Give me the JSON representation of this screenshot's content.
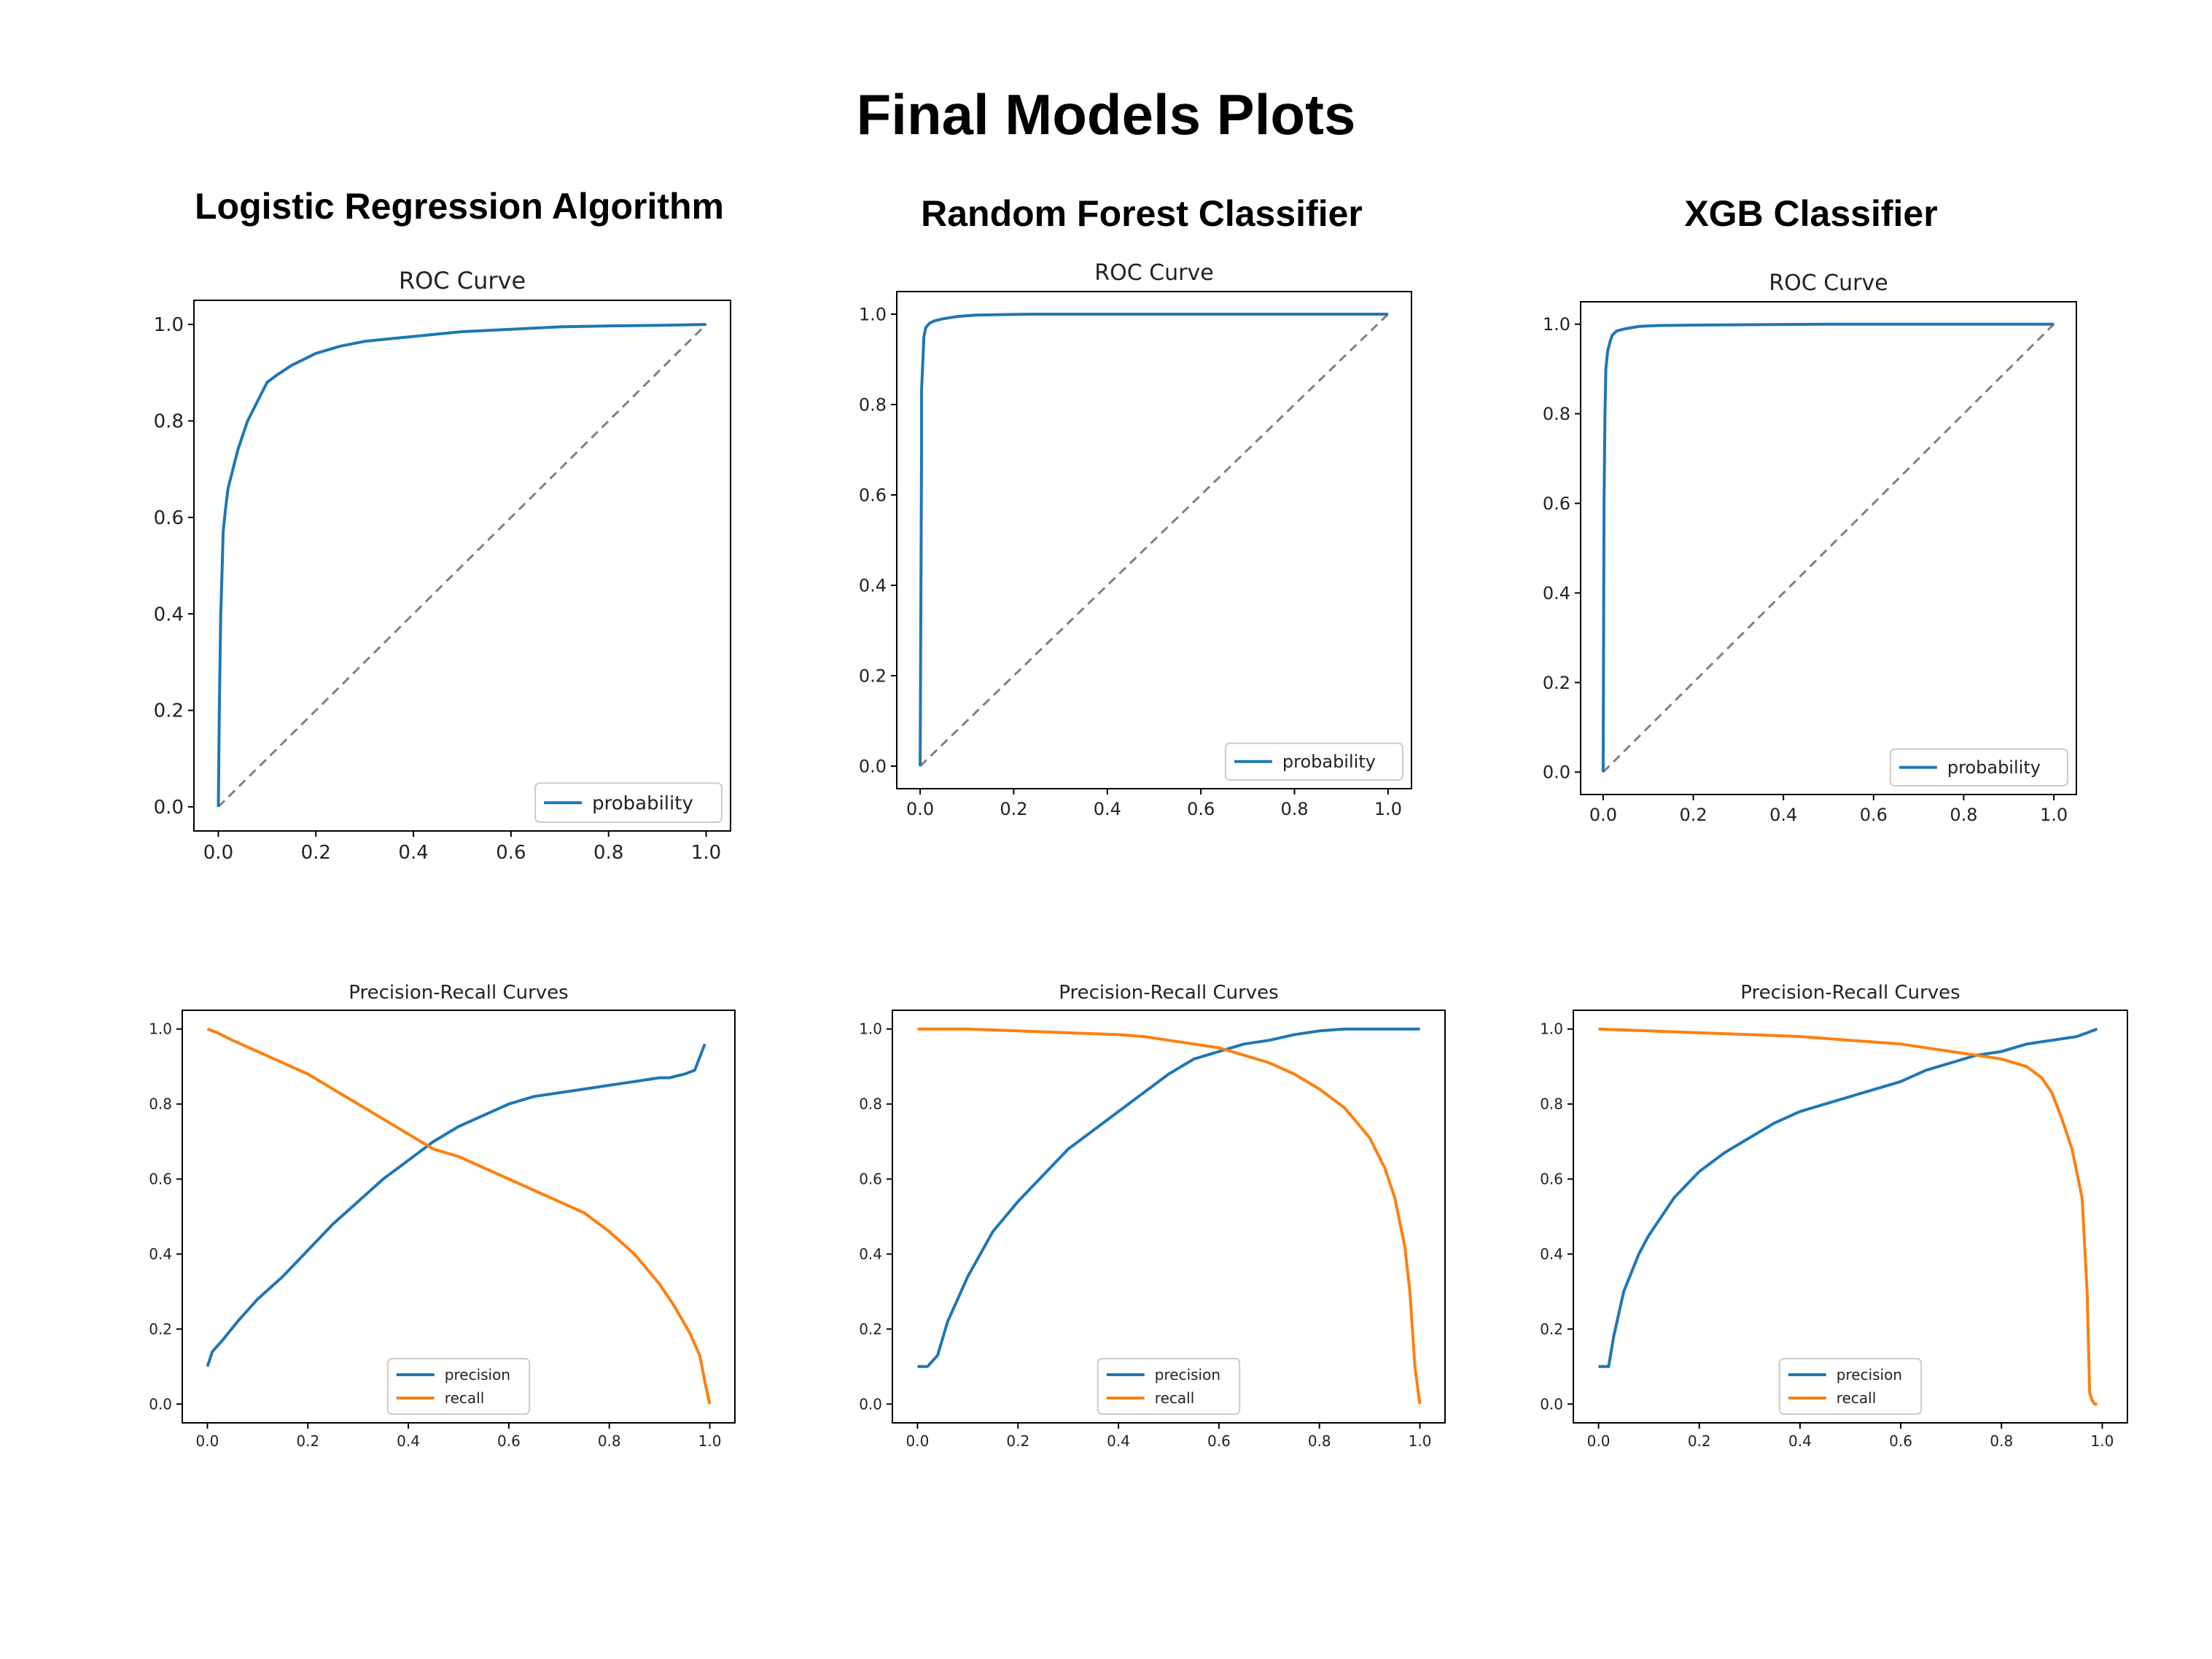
{
  "page": {
    "title": "Final Models Plots"
  },
  "models": [
    {
      "title": "Logistic Regression Algorithm"
    },
    {
      "title": "Random Forest Classifier"
    },
    {
      "title": "XGB Classifier"
    }
  ],
  "colors": {
    "blue": "#1f77b4",
    "orange": "#ff7f0e",
    "diagonal": "#808080",
    "axis": "#000000"
  },
  "chart_data": [
    {
      "id": "lr-roc",
      "type": "line",
      "title": "ROC Curve",
      "xlabel": "",
      "ylabel": "",
      "xlim": [
        -0.05,
        1.05
      ],
      "ylim": [
        -0.05,
        1.05
      ],
      "xticks": [
        "0.0",
        "0.2",
        "0.4",
        "0.6",
        "0.8",
        "1.0"
      ],
      "yticks": [
        "0.0",
        "0.2",
        "0.4",
        "0.6",
        "0.8",
        "1.0"
      ],
      "legend_position": "lower-right",
      "diagonal": true,
      "series": [
        {
          "name": "probability",
          "color": "#1f77b4",
          "x": [
            0,
            0.002,
            0.005,
            0.008,
            0.01,
            0.015,
            0.02,
            0.03,
            0.04,
            0.05,
            0.06,
            0.08,
            0.1,
            0.12,
            0.15,
            0.2,
            0.25,
            0.3,
            0.35,
            0.4,
            0.45,
            0.5,
            0.6,
            0.7,
            0.8,
            0.9,
            1.0
          ],
          "y": [
            0,
            0.2,
            0.4,
            0.5,
            0.57,
            0.62,
            0.66,
            0.7,
            0.74,
            0.77,
            0.8,
            0.84,
            0.88,
            0.895,
            0.915,
            0.94,
            0.955,
            0.965,
            0.97,
            0.975,
            0.98,
            0.985,
            0.99,
            0.995,
            0.997,
            0.998,
            1.0
          ]
        }
      ]
    },
    {
      "id": "rf-roc",
      "type": "line",
      "title": "ROC Curve",
      "xlabel": "",
      "ylabel": "",
      "xlim": [
        -0.05,
        1.05
      ],
      "ylim": [
        -0.05,
        1.05
      ],
      "xticks": [
        "0.0",
        "0.2",
        "0.4",
        "0.6",
        "0.8",
        "1.0"
      ],
      "yticks": [
        "0.0",
        "0.2",
        "0.4",
        "0.6",
        "0.8",
        "1.0"
      ],
      "legend_position": "lower-right",
      "diagonal": true,
      "series": [
        {
          "name": "probability",
          "color": "#1f77b4",
          "x": [
            0,
            0.003,
            0.003,
            0.006,
            0.008,
            0.012,
            0.02,
            0.03,
            0.05,
            0.08,
            0.12,
            0.24,
            0.5,
            1.0
          ],
          "y": [
            0,
            0.7,
            0.83,
            0.9,
            0.95,
            0.97,
            0.98,
            0.985,
            0.99,
            0.995,
            0.998,
            1.0,
            1.0,
            1.0
          ]
        }
      ]
    },
    {
      "id": "xgb-roc",
      "type": "line",
      "title": "ROC Curve",
      "xlabel": "",
      "ylabel": "",
      "xlim": [
        -0.05,
        1.05
      ],
      "ylim": [
        -0.05,
        1.05
      ],
      "xticks": [
        "0.0",
        "0.2",
        "0.4",
        "0.6",
        "0.8",
        "1.0"
      ],
      "yticks": [
        "0.0",
        "0.2",
        "0.4",
        "0.6",
        "0.8",
        "1.0"
      ],
      "legend_position": "lower-right",
      "diagonal": true,
      "series": [
        {
          "name": "probability",
          "color": "#1f77b4",
          "x": [
            0,
            0.002,
            0.004,
            0.006,
            0.01,
            0.015,
            0.02,
            0.03,
            0.05,
            0.08,
            0.12,
            0.2,
            0.5,
            1.0
          ],
          "y": [
            0,
            0.6,
            0.8,
            0.9,
            0.94,
            0.96,
            0.975,
            0.985,
            0.99,
            0.995,
            0.997,
            0.998,
            1.0,
            1.0
          ]
        }
      ]
    },
    {
      "id": "lr-pr",
      "type": "line",
      "title": "Precision-Recall Curves",
      "xlabel": "",
      "ylabel": "",
      "xlim": [
        -0.05,
        1.05
      ],
      "ylim": [
        -0.05,
        1.05
      ],
      "xticks": [
        "0.0",
        "0.2",
        "0.4",
        "0.6",
        "0.8",
        "1.0"
      ],
      "yticks": [
        "0.0",
        "0.2",
        "0.4",
        "0.6",
        "0.8",
        "1.0"
      ],
      "legend_position": "lower-center",
      "diagonal": false,
      "series": [
        {
          "name": "precision",
          "color": "#1f77b4",
          "x": [
            0,
            0.01,
            0.03,
            0.06,
            0.1,
            0.15,
            0.2,
            0.25,
            0.3,
            0.35,
            0.4,
            0.45,
            0.5,
            0.55,
            0.6,
            0.65,
            0.7,
            0.75,
            0.8,
            0.85,
            0.9,
            0.92,
            0.95,
            0.97,
            0.99
          ],
          "y": [
            0.1,
            0.14,
            0.17,
            0.22,
            0.28,
            0.34,
            0.41,
            0.48,
            0.54,
            0.6,
            0.65,
            0.7,
            0.74,
            0.77,
            0.8,
            0.82,
            0.83,
            0.84,
            0.85,
            0.86,
            0.87,
            0.87,
            0.88,
            0.89,
            0.96
          ]
        }
      ],
      "series_2": [
        {
          "name": "recall",
          "color": "#ff7f0e",
          "x": [
            0,
            0.02,
            0.05,
            0.1,
            0.15,
            0.2,
            0.25,
            0.3,
            0.35,
            0.4,
            0.45,
            0.5,
            0.55,
            0.6,
            0.65,
            0.7,
            0.75,
            0.8,
            0.85,
            0.9,
            0.93,
            0.96,
            0.98,
            0.99,
            1.0
          ],
          "y": [
            1.0,
            0.99,
            0.97,
            0.94,
            0.91,
            0.88,
            0.84,
            0.8,
            0.76,
            0.72,
            0.68,
            0.66,
            0.63,
            0.6,
            0.57,
            0.54,
            0.51,
            0.46,
            0.4,
            0.32,
            0.26,
            0.19,
            0.13,
            0.06,
            0.0
          ]
        }
      ]
    },
    {
      "id": "rf-pr",
      "type": "line",
      "title": "Precision-Recall Curves",
      "xlabel": "",
      "ylabel": "",
      "xlim": [
        -0.05,
        1.05
      ],
      "ylim": [
        -0.05,
        1.05
      ],
      "xticks": [
        "0.0",
        "0.2",
        "0.4",
        "0.6",
        "0.8",
        "1.0"
      ],
      "yticks": [
        "0.0",
        "0.2",
        "0.4",
        "0.6",
        "0.8",
        "1.0"
      ],
      "legend_position": "lower-center",
      "diagonal": false,
      "series": [
        {
          "name": "precision",
          "color": "#1f77b4",
          "x": [
            0,
            0.02,
            0.04,
            0.06,
            0.1,
            0.15,
            0.2,
            0.25,
            0.3,
            0.35,
            0.4,
            0.45,
            0.5,
            0.55,
            0.6,
            0.65,
            0.7,
            0.75,
            0.8,
            0.85,
            0.9,
            0.95,
            1.0
          ],
          "y": [
            0.1,
            0.1,
            0.13,
            0.22,
            0.34,
            0.46,
            0.54,
            0.61,
            0.68,
            0.73,
            0.78,
            0.83,
            0.88,
            0.92,
            0.94,
            0.96,
            0.97,
            0.985,
            0.995,
            1.0,
            1.0,
            1.0,
            1.0
          ]
        },
        {
          "name": "recall",
          "color": "#ff7f0e",
          "x": [
            0,
            0.1,
            0.2,
            0.3,
            0.4,
            0.45,
            0.5,
            0.55,
            0.6,
            0.65,
            0.7,
            0.75,
            0.8,
            0.85,
            0.9,
            0.93,
            0.95,
            0.97,
            0.98,
            0.99,
            1.0
          ],
          "y": [
            1.0,
            1.0,
            0.995,
            0.99,
            0.985,
            0.98,
            0.97,
            0.96,
            0.95,
            0.93,
            0.91,
            0.88,
            0.84,
            0.79,
            0.71,
            0.63,
            0.55,
            0.42,
            0.3,
            0.1,
            0.0
          ]
        }
      ]
    },
    {
      "id": "xgb-pr",
      "type": "line",
      "title": "Precision-Recall Curves",
      "xlabel": "",
      "ylabel": "",
      "xlim": [
        -0.05,
        1.05
      ],
      "ylim": [
        -0.05,
        1.05
      ],
      "xticks": [
        "0.0",
        "0.2",
        "0.4",
        "0.6",
        "0.8",
        "1.0"
      ],
      "yticks": [
        "0.0",
        "0.2",
        "0.4",
        "0.6",
        "0.8",
        "1.0"
      ],
      "legend_position": "lower-center",
      "diagonal": false,
      "series": [
        {
          "name": "precision",
          "color": "#1f77b4",
          "x": [
            0,
            0.02,
            0.03,
            0.05,
            0.08,
            0.1,
            0.15,
            0.2,
            0.25,
            0.3,
            0.35,
            0.4,
            0.45,
            0.5,
            0.55,
            0.6,
            0.65,
            0.7,
            0.75,
            0.8,
            0.85,
            0.9,
            0.95,
            0.97,
            0.99
          ],
          "y": [
            0.1,
            0.1,
            0.18,
            0.3,
            0.4,
            0.45,
            0.55,
            0.62,
            0.67,
            0.71,
            0.75,
            0.78,
            0.8,
            0.82,
            0.84,
            0.86,
            0.89,
            0.91,
            0.93,
            0.94,
            0.96,
            0.97,
            0.98,
            0.99,
            1.0
          ]
        },
        {
          "name": "recall",
          "color": "#ff7f0e",
          "x": [
            0,
            0.1,
            0.2,
            0.3,
            0.4,
            0.5,
            0.6,
            0.7,
            0.75,
            0.8,
            0.85,
            0.88,
            0.9,
            0.92,
            0.94,
            0.96,
            0.97,
            0.975,
            0.98,
            0.985,
            0.99
          ],
          "y": [
            1.0,
            0.995,
            0.99,
            0.985,
            0.98,
            0.97,
            0.96,
            0.94,
            0.93,
            0.92,
            0.9,
            0.87,
            0.83,
            0.76,
            0.68,
            0.55,
            0.3,
            0.03,
            0.01,
            0.0,
            0.0
          ]
        }
      ]
    }
  ]
}
